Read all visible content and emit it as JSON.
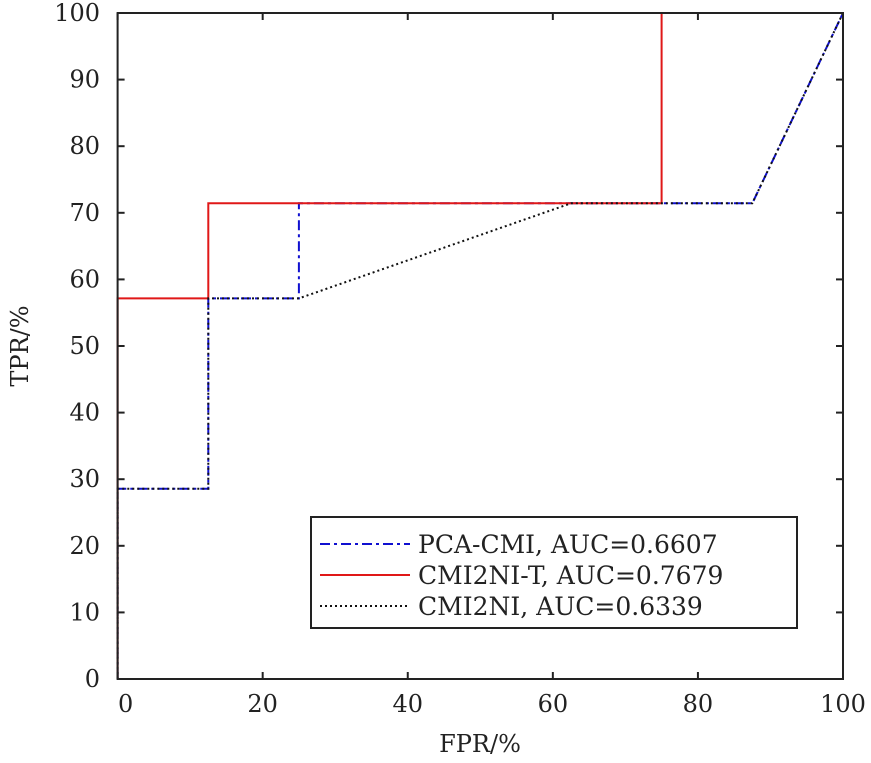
{
  "chart_data": {
    "type": "line",
    "title": "",
    "xlabel": "FPR/%",
    "ylabel": "TPR/%",
    "xlim": [
      0,
      100
    ],
    "ylim": [
      0,
      100
    ],
    "xticks": [
      0,
      20,
      40,
      60,
      80,
      100
    ],
    "yticks": [
      0,
      10,
      20,
      30,
      40,
      50,
      60,
      70,
      80,
      90,
      100
    ],
    "grid": false,
    "legend_position": "bottom-right",
    "series": [
      {
        "name": "PCA-CMI, AUC=0.6607",
        "color": "#1010d0",
        "style": "dashdot",
        "x": [
          0,
          0,
          12.5,
          12.5,
          25,
          25,
          87.5,
          100
        ],
        "y": [
          0,
          28.57,
          28.57,
          57.14,
          57.14,
          71.43,
          71.43,
          100
        ]
      },
      {
        "name": "CMI2NI-T, AUC=0.7679",
        "color": "#e01818",
        "style": "solid",
        "x": [
          0,
          0,
          12.5,
          12.5,
          75,
          75,
          100
        ],
        "y": [
          0,
          57.14,
          57.14,
          71.43,
          71.43,
          100,
          100
        ]
      },
      {
        "name": "CMI2NI, AUC=0.6339",
        "color": "#111111",
        "style": "dotted",
        "x": [
          0,
          0,
          12.5,
          12.5,
          25,
          62.5,
          87.5,
          100
        ],
        "y": [
          0,
          28.57,
          28.57,
          57.14,
          57.14,
          71.43,
          71.43,
          100
        ]
      }
    ]
  }
}
